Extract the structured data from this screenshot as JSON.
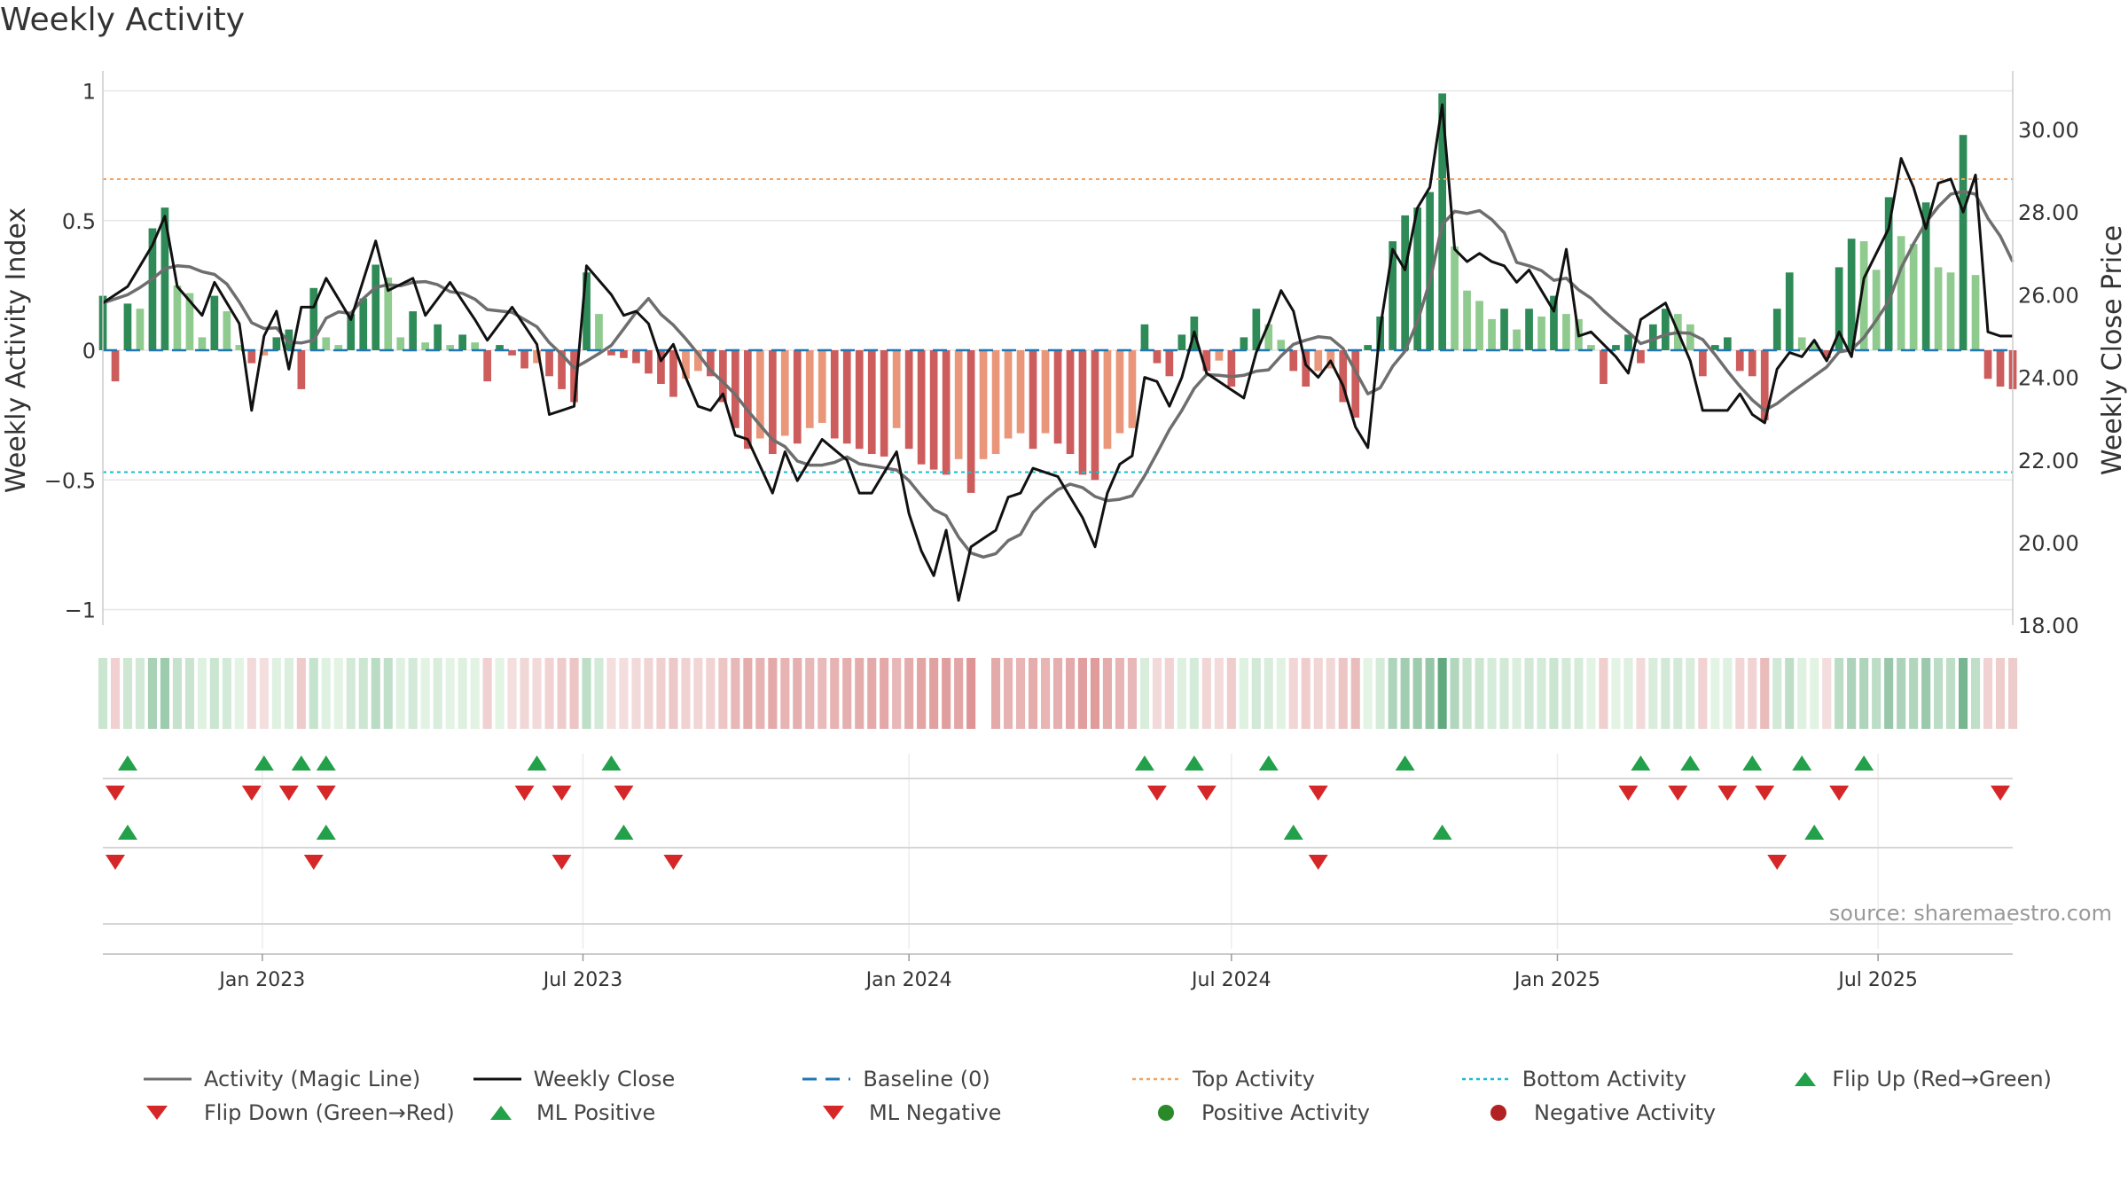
{
  "title": "Weekly Activity",
  "source_text": "source: sharemaestro.com",
  "colors": {
    "pos_strong": "#2e8b57",
    "pos_light": "#8fca8f",
    "neg_strong": "#cd5c5c",
    "neg_light": "#e9967a",
    "magic_line": "#6e6e6e",
    "close_line": "#111111",
    "baseline": "#1f77b4",
    "top_line": "#f4a261",
    "bottom_line": "#17becf",
    "marker_up": "#22a04a",
    "marker_down": "#d62728",
    "grid": "#e6e6e6"
  },
  "chart_data": {
    "type": "bar+line",
    "title": "Weekly Activity",
    "ylabel_left": "Weekly Activity Index",
    "ylabel_right": "Weekly Close Price",
    "ylim_left": [
      -1.1,
      1.1
    ],
    "ylim_right": [
      18,
      31
    ],
    "yticks_left": [
      1,
      0.5,
      0,
      -0.5,
      -1
    ],
    "yticks_left_labels": [
      "1",
      "0.5",
      "0",
      "−0.5",
      "−1"
    ],
    "yticks_right": [
      30,
      28,
      26,
      24,
      22,
      20,
      18
    ],
    "yticks_right_labels": [
      "30.00",
      "28.00",
      "26.00",
      "24.00",
      "22.00",
      "20.00",
      "18.00"
    ],
    "x_start": "2022-10-03",
    "x_end": "2025-09-15",
    "xticks": [
      "2023-01-01",
      "2023-07-01",
      "2024-01-01",
      "2024-07-01",
      "2025-01-01",
      "2025-07-01"
    ],
    "xtick_labels": [
      "Jan 2023",
      "Jul 2023",
      "Jan 2024",
      "Jul 2024",
      "Jan 2025",
      "Jul 2025"
    ],
    "top_activity": 0.66,
    "bottom_activity": -0.47,
    "baseline": 0,
    "weekly_activity_keypoints": [
      [
        "2022-10-03",
        0.21
      ],
      [
        "2022-10-10",
        -0.12
      ],
      [
        "2022-10-17",
        0.18
      ],
      [
        "2022-10-24",
        0.16
      ],
      [
        "2022-10-31",
        0.47
      ],
      [
        "2022-11-07",
        0.55
      ],
      [
        "2022-11-14",
        0.25
      ],
      [
        "2022-11-21",
        0.22
      ],
      [
        "2022-11-28",
        0.05
      ],
      [
        "2022-12-05",
        0.21
      ],
      [
        "2022-12-12",
        0.15
      ],
      [
        "2022-12-19",
        0.02
      ],
      [
        "2022-12-26",
        -0.05
      ],
      [
        "2023-01-02",
        -0.02
      ],
      [
        "2023-01-09",
        0.05
      ],
      [
        "2023-01-16",
        0.08
      ],
      [
        "2023-01-23",
        -0.15
      ],
      [
        "2023-01-30",
        0.24
      ],
      [
        "2023-02-06",
        0.05
      ],
      [
        "2023-02-13",
        0.02
      ],
      [
        "2023-02-20",
        0.14
      ],
      [
        "2023-02-27",
        0.2
      ],
      [
        "2023-03-06",
        0.33
      ],
      [
        "2023-03-13",
        0.28
      ],
      [
        "2023-03-20",
        0.05
      ],
      [
        "2023-03-27",
        0.15
      ],
      [
        "2023-04-03",
        0.03
      ],
      [
        "2023-04-10",
        0.1
      ],
      [
        "2023-04-17",
        0.02
      ],
      [
        "2023-04-24",
        0.06
      ],
      [
        "2023-05-01",
        0.03
      ],
      [
        "2023-05-08",
        -0.12
      ],
      [
        "2023-05-15",
        0.02
      ],
      [
        "2023-05-22",
        -0.02
      ],
      [
        "2023-05-29",
        -0.07
      ],
      [
        "2023-06-05",
        -0.05
      ],
      [
        "2023-06-12",
        -0.1
      ],
      [
        "2023-06-19",
        -0.15
      ],
      [
        "2023-06-26",
        -0.2
      ],
      [
        "2023-07-03",
        0.3
      ],
      [
        "2023-07-10",
        0.14
      ],
      [
        "2023-07-17",
        -0.02
      ],
      [
        "2023-07-24",
        -0.03
      ],
      [
        "2023-07-31",
        -0.05
      ],
      [
        "2023-08-07",
        -0.09
      ],
      [
        "2023-08-14",
        -0.13
      ],
      [
        "2023-08-21",
        -0.18
      ],
      [
        "2023-08-28",
        -0.11
      ],
      [
        "2023-09-04",
        -0.08
      ],
      [
        "2023-09-11",
        -0.1
      ],
      [
        "2023-09-18",
        -0.2
      ],
      [
        "2023-09-25",
        -0.3
      ],
      [
        "2023-10-02",
        -0.38
      ],
      [
        "2023-10-09",
        -0.34
      ],
      [
        "2023-10-16",
        -0.4
      ],
      [
        "2023-10-23",
        -0.33
      ],
      [
        "2023-10-30",
        -0.36
      ],
      [
        "2023-11-06",
        -0.3
      ],
      [
        "2023-11-13",
        -0.28
      ],
      [
        "2023-11-20",
        -0.34
      ],
      [
        "2023-11-27",
        -0.36
      ],
      [
        "2023-12-04",
        -0.38
      ],
      [
        "2023-12-11",
        -0.4
      ],
      [
        "2023-12-18",
        -0.41
      ],
      [
        "2023-12-25",
        -0.3
      ],
      [
        "2024-01-01",
        -0.38
      ],
      [
        "2024-01-08",
        -0.44
      ],
      [
        "2024-01-15",
        -0.46
      ],
      [
        "2024-01-22",
        -0.48
      ],
      [
        "2024-01-29",
        -0.42
      ],
      [
        "2024-02-05",
        -0.55
      ],
      [
        "2024-02-12",
        -0.42
      ],
      [
        "2024-02-19",
        -0.4
      ],
      [
        "2024-02-26",
        -0.34
      ],
      [
        "2024-03-04",
        -0.32
      ],
      [
        "2024-03-11",
        -0.38
      ],
      [
        "2024-03-18",
        -0.32
      ],
      [
        "2024-03-25",
        -0.36
      ],
      [
        "2024-04-01",
        -0.4
      ],
      [
        "2024-04-08",
        -0.48
      ],
      [
        "2024-04-15",
        -0.5
      ],
      [
        "2024-04-22",
        -0.38
      ],
      [
        "2024-04-29",
        -0.32
      ],
      [
        "2024-05-06",
        -0.3
      ],
      [
        "2024-05-13",
        0.1
      ],
      [
        "2024-05-20",
        -0.05
      ],
      [
        "2024-05-27",
        -0.1
      ],
      [
        "2024-06-03",
        0.06
      ],
      [
        "2024-06-10",
        0.13
      ],
      [
        "2024-06-17",
        -0.08
      ],
      [
        "2024-06-24",
        -0.04
      ],
      [
        "2024-07-01",
        -0.14
      ],
      [
        "2024-07-08",
        0.05
      ],
      [
        "2024-07-15",
        0.16
      ],
      [
        "2024-07-22",
        0.1
      ],
      [
        "2024-07-29",
        0.04
      ],
      [
        "2024-08-05",
        -0.08
      ],
      [
        "2024-08-12",
        -0.14
      ],
      [
        "2024-08-19",
        -0.08
      ],
      [
        "2024-08-26",
        -0.07
      ],
      [
        "2024-09-02",
        -0.2
      ],
      [
        "2024-09-09",
        -0.26
      ],
      [
        "2024-09-16",
        0.02
      ],
      [
        "2024-09-23",
        0.13
      ],
      [
        "2024-09-30",
        0.42
      ],
      [
        "2024-10-07",
        0.52
      ],
      [
        "2024-10-14",
        0.55
      ],
      [
        "2024-10-21",
        0.61
      ],
      [
        "2024-10-28",
        0.99
      ],
      [
        "2024-11-04",
        0.4
      ],
      [
        "2024-11-11",
        0.23
      ],
      [
        "2024-11-18",
        0.19
      ],
      [
        "2024-11-25",
        0.12
      ],
      [
        "2024-12-02",
        0.16
      ],
      [
        "2024-12-09",
        0.08
      ],
      [
        "2024-12-16",
        0.16
      ],
      [
        "2024-12-23",
        0.13
      ],
      [
        "2024-12-30",
        0.21
      ],
      [
        "2025-01-06",
        0.14
      ],
      [
        "2025-01-13",
        0.12
      ],
      [
        "2025-01-20",
        0.02
      ],
      [
        "2025-01-27",
        -0.13
      ],
      [
        "2025-02-03",
        0.02
      ],
      [
        "2025-02-10",
        0.06
      ],
      [
        "2025-02-17",
        -0.05
      ],
      [
        "2025-02-24",
        0.1
      ],
      [
        "2025-03-03",
        0.16
      ],
      [
        "2025-03-10",
        0.14
      ],
      [
        "2025-03-17",
        0.1
      ],
      [
        "2025-03-24",
        -0.1
      ],
      [
        "2025-03-31",
        0.02
      ],
      [
        "2025-04-07",
        0.05
      ],
      [
        "2025-04-14",
        -0.08
      ],
      [
        "2025-04-21",
        -0.1
      ],
      [
        "2025-04-28",
        -0.27
      ],
      [
        "2025-05-05",
        0.16
      ],
      [
        "2025-05-12",
        0.3
      ],
      [
        "2025-05-19",
        0.05
      ],
      [
        "2025-05-26",
        0.03
      ],
      [
        "2025-06-02",
        -0.03
      ],
      [
        "2025-06-09",
        0.32
      ],
      [
        "2025-06-16",
        0.43
      ],
      [
        "2025-06-23",
        0.42
      ],
      [
        "2025-06-30",
        0.31
      ],
      [
        "2025-07-07",
        0.59
      ],
      [
        "2025-07-14",
        0.44
      ],
      [
        "2025-07-21",
        0.41
      ],
      [
        "2025-07-28",
        0.57
      ],
      [
        "2025-08-04",
        0.32
      ],
      [
        "2025-08-11",
        0.3
      ],
      [
        "2025-08-18",
        0.83
      ],
      [
        "2025-08-25",
        0.29
      ],
      [
        "2025-09-01",
        -0.11
      ],
      [
        "2025-09-08",
        -0.14
      ],
      [
        "2025-09-15",
        -0.15
      ]
    ],
    "weekly_close_keypoints": [
      [
        "2022-10-03",
        25.8
      ],
      [
        "2022-10-17",
        26.2
      ],
      [
        "2022-10-31",
        27.2
      ],
      [
        "2022-11-07",
        27.9
      ],
      [
        "2022-11-14",
        26.2
      ],
      [
        "2022-11-28",
        25.5
      ],
      [
        "2022-12-05",
        26.3
      ],
      [
        "2022-12-19",
        25.3
      ],
      [
        "2022-12-26",
        23.2
      ],
      [
        "2023-01-02",
        25.0
      ],
      [
        "2023-01-09",
        25.6
      ],
      [
        "2023-01-16",
        24.2
      ],
      [
        "2023-01-23",
        25.7
      ],
      [
        "2023-01-30",
        25.7
      ],
      [
        "2023-02-06",
        26.4
      ],
      [
        "2023-02-20",
        25.4
      ],
      [
        "2023-03-06",
        27.3
      ],
      [
        "2023-03-13",
        26.1
      ],
      [
        "2023-03-27",
        26.4
      ],
      [
        "2023-04-03",
        25.5
      ],
      [
        "2023-04-17",
        26.3
      ],
      [
        "2023-05-01",
        25.4
      ],
      [
        "2023-05-08",
        24.9
      ],
      [
        "2023-05-22",
        25.7
      ],
      [
        "2023-06-05",
        24.8
      ],
      [
        "2023-06-12",
        23.1
      ],
      [
        "2023-06-26",
        23.3
      ],
      [
        "2023-07-03",
        26.7
      ],
      [
        "2023-07-17",
        26.0
      ],
      [
        "2023-07-24",
        25.5
      ],
      [
        "2023-07-31",
        25.6
      ],
      [
        "2023-08-07",
        25.3
      ],
      [
        "2023-08-14",
        24.4
      ],
      [
        "2023-08-21",
        24.8
      ],
      [
        "2023-08-28",
        24.0
      ],
      [
        "2023-09-04",
        23.3
      ],
      [
        "2023-09-11",
        23.2
      ],
      [
        "2023-09-18",
        23.6
      ],
      [
        "2023-09-25",
        22.6
      ],
      [
        "2023-10-02",
        22.5
      ],
      [
        "2023-10-16",
        21.2
      ],
      [
        "2023-10-23",
        22.2
      ],
      [
        "2023-10-30",
        21.5
      ],
      [
        "2023-11-13",
        22.5
      ],
      [
        "2023-11-27",
        22.0
      ],
      [
        "2023-12-04",
        21.2
      ],
      [
        "2023-12-11",
        21.2
      ],
      [
        "2023-12-25",
        22.2
      ],
      [
        "2024-01-01",
        20.7
      ],
      [
        "2024-01-08",
        19.8
      ],
      [
        "2024-01-15",
        19.2
      ],
      [
        "2024-01-22",
        20.3
      ],
      [
        "2024-01-29",
        18.6
      ],
      [
        "2024-02-05",
        19.9
      ],
      [
        "2024-02-19",
        20.3
      ],
      [
        "2024-02-26",
        21.1
      ],
      [
        "2024-03-04",
        21.2
      ],
      [
        "2024-03-11",
        21.8
      ],
      [
        "2024-03-18",
        21.7
      ],
      [
        "2024-03-25",
        21.6
      ],
      [
        "2024-04-08",
        20.6
      ],
      [
        "2024-04-15",
        19.9
      ],
      [
        "2024-04-22",
        21.2
      ],
      [
        "2024-04-29",
        21.9
      ],
      [
        "2024-05-06",
        22.1
      ],
      [
        "2024-05-13",
        24.0
      ],
      [
        "2024-05-20",
        23.9
      ],
      [
        "2024-05-27",
        23.3
      ],
      [
        "2024-06-03",
        24.0
      ],
      [
        "2024-06-10",
        25.1
      ],
      [
        "2024-06-17",
        24.1
      ],
      [
        "2024-06-24",
        23.9
      ],
      [
        "2024-07-08",
        23.5
      ],
      [
        "2024-07-15",
        24.6
      ],
      [
        "2024-07-22",
        25.3
      ],
      [
        "2024-07-29",
        26.1
      ],
      [
        "2024-08-05",
        25.6
      ],
      [
        "2024-08-12",
        24.3
      ],
      [
        "2024-08-19",
        24.0
      ],
      [
        "2024-08-26",
        24.4
      ],
      [
        "2024-09-02",
        23.8
      ],
      [
        "2024-09-09",
        22.8
      ],
      [
        "2024-09-16",
        22.3
      ],
      [
        "2024-09-23",
        25.2
      ],
      [
        "2024-09-30",
        27.1
      ],
      [
        "2024-10-07",
        26.6
      ],
      [
        "2024-10-14",
        28.1
      ],
      [
        "2024-10-21",
        28.6
      ],
      [
        "2024-10-28",
        30.6
      ],
      [
        "2024-11-04",
        27.1
      ],
      [
        "2024-11-11",
        26.8
      ],
      [
        "2024-11-18",
        27.0
      ],
      [
        "2024-11-25",
        26.8
      ],
      [
        "2024-12-02",
        26.7
      ],
      [
        "2024-12-09",
        26.3
      ],
      [
        "2024-12-16",
        26.6
      ],
      [
        "2024-12-30",
        25.6
      ],
      [
        "2025-01-06",
        27.1
      ],
      [
        "2025-01-13",
        25.0
      ],
      [
        "2025-01-20",
        25.1
      ],
      [
        "2025-01-27",
        24.8
      ],
      [
        "2025-02-03",
        24.5
      ],
      [
        "2025-02-10",
        24.1
      ],
      [
        "2025-02-17",
        25.4
      ],
      [
        "2025-03-03",
        25.8
      ],
      [
        "2025-03-10",
        25.1
      ],
      [
        "2025-03-17",
        24.4
      ],
      [
        "2025-03-24",
        23.2
      ],
      [
        "2025-04-07",
        23.2
      ],
      [
        "2025-04-14",
        23.6
      ],
      [
        "2025-04-21",
        23.1
      ],
      [
        "2025-04-28",
        22.9
      ],
      [
        "2025-05-05",
        24.2
      ],
      [
        "2025-05-12",
        24.6
      ],
      [
        "2025-05-19",
        24.5
      ],
      [
        "2025-05-26",
        24.9
      ],
      [
        "2025-06-02",
        24.4
      ],
      [
        "2025-06-09",
        25.1
      ],
      [
        "2025-06-16",
        24.5
      ],
      [
        "2025-06-23",
        26.4
      ],
      [
        "2025-07-07",
        27.6
      ],
      [
        "2025-07-14",
        29.3
      ],
      [
        "2025-07-21",
        28.6
      ],
      [
        "2025-07-28",
        27.6
      ],
      [
        "2025-08-04",
        28.7
      ],
      [
        "2025-08-11",
        28.8
      ],
      [
        "2025-08-18",
        28.0
      ],
      [
        "2025-08-25",
        28.9
      ],
      [
        "2025-09-01",
        25.1
      ],
      [
        "2025-09-08",
        25.0
      ],
      [
        "2025-09-15",
        25.0
      ]
    ],
    "markers": {
      "flip_up": [
        "2022-10-17",
        "2023-01-02",
        "2023-01-23",
        "2023-02-06",
        "2023-06-05",
        "2023-07-17",
        "2024-05-13",
        "2024-06-10",
        "2024-07-22",
        "2024-10-07",
        "2025-02-17",
        "2025-03-17",
        "2025-04-21",
        "2025-05-19",
        "2025-06-23"
      ],
      "flip_down": [
        "2022-10-10",
        "2022-12-26",
        "2023-01-16",
        "2023-02-06",
        "2023-05-29",
        "2023-06-19",
        "2023-07-24",
        "2024-05-20",
        "2024-06-17",
        "2024-08-19",
        "2025-02-10",
        "2025-03-10",
        "2025-04-07",
        "2025-04-28",
        "2025-06-09",
        "2025-09-08"
      ],
      "ml_positive": [
        "2022-10-17",
        "2023-02-06",
        "2023-07-24",
        "2024-08-05",
        "2024-10-28",
        "2025-05-26"
      ],
      "ml_negative": [
        "2022-10-10",
        "2023-01-30",
        "2023-06-19",
        "2023-08-21",
        "2024-08-19",
        "2025-05-05"
      ],
      "positive_activity": [],
      "negative_activity": []
    },
    "legend": [
      {
        "label": "Activity (Magic Line)",
        "symbol": "line-gray"
      },
      {
        "label": "Weekly Close",
        "symbol": "line-black"
      },
      {
        "label": "Baseline (0)",
        "symbol": "dash-blue"
      },
      {
        "label": "Top Activity",
        "symbol": "dot-orange"
      },
      {
        "label": "Bottom Activity",
        "symbol": "dot-cyan"
      },
      {
        "label": "Flip Up (Red→Green)",
        "symbol": "tri-up"
      },
      {
        "label": "Flip Down (Green→Red)",
        "symbol": "tri-down"
      },
      {
        "label": "ML Positive",
        "symbol": "tri-up"
      },
      {
        "label": "ML Negative",
        "symbol": "tri-down"
      },
      {
        "label": "Positive Activity",
        "symbol": "circle-green"
      },
      {
        "label": "Negative Activity",
        "symbol": "circle-red"
      }
    ]
  }
}
